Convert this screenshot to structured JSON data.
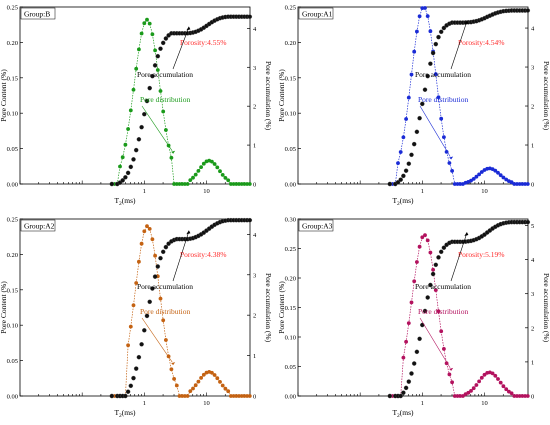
{
  "figure": {
    "x_axis_title": "T",
    "x_axis_subscript": "2",
    "x_axis_unit": "(ms)",
    "left_axis_title": "Pore Content (%)",
    "right_axis_title": "Pore accumulation (%)",
    "x_tick_labels": [
      "1",
      "10"
    ]
  },
  "chart_data": [
    {
      "type": "line",
      "group_label": "Group:B",
      "porosity_label": "Porosity:4.55%",
      "accumulation_label": "Pore accumulation",
      "distribution_label": "Pore distribution",
      "color": "#1a9a1a",
      "accumulation_color": "#111111",
      "porosity_color": "#ff2a2a",
      "xlabel": "T2(ms)",
      "ylabel": "Pore Content (%)",
      "y2label": "Pore accumulation (%)",
      "x_scale": "log",
      "xlim": [
        0.01,
        50
      ],
      "ylim": [
        0,
        0.25
      ],
      "y2lim": [
        0,
        4.55
      ],
      "y_ticks": [
        "0.00",
        "0.05",
        "0.10",
        "0.15",
        "0.20",
        "0.25"
      ],
      "y2_ticks": [
        "0",
        "1",
        "2",
        "3",
        "4"
      ],
      "distribution_peaks": [
        {
          "center_ms": 1.1,
          "height": 0.232,
          "log_width": 0.205,
          "range_ms": [
            0.38,
            3.0
          ]
        },
        {
          "center_ms": 11.0,
          "height": 0.033,
          "log_width": 0.16,
          "range_ms": [
            5.0,
            24.0
          ]
        }
      ],
      "accumulation_total": 4.3
    },
    {
      "type": "line",
      "group_label": "Group:A1",
      "porosity_label": "Porosity:4.54%",
      "accumulation_label": "Pore accumulation",
      "distribution_label": "Pore distribution",
      "color": "#1a2bd6",
      "accumulation_color": "#111111",
      "porosity_color": "#ff2a2a",
      "xlabel": "T2(ms)",
      "ylabel": "Pore Content (%)",
      "y2label": "Pore accumulation (%)",
      "x_scale": "log",
      "xlim": [
        0.01,
        50
      ],
      "ylim": [
        0,
        0.25
      ],
      "y2lim": [
        0,
        4.54
      ],
      "y_ticks": [
        "0.00",
        "0.05",
        "0.10",
        "0.15",
        "0.20",
        "0.25"
      ],
      "y2_ticks": [
        "0",
        "1",
        "2",
        "3",
        "4"
      ],
      "distribution_peaks": [
        {
          "center_ms": 1.05,
          "height": 0.25,
          "log_width": 0.2,
          "range_ms": [
            0.4,
            3.3
          ]
        },
        {
          "center_ms": 12.0,
          "height": 0.022,
          "log_width": 0.17,
          "range_ms": [
            4.5,
            30.0
          ]
        }
      ],
      "accumulation_total": 4.45
    },
    {
      "type": "line",
      "group_label": "Group:A2",
      "porosity_label": "Porosity:4.38%",
      "accumulation_label": "Pore accumulation",
      "distribution_label": "Pore distribution",
      "color": "#c46212",
      "accumulation_color": "#111111",
      "porosity_color": "#ff2a2a",
      "xlabel": "T2(ms)",
      "ylabel": "Pore Content (%)",
      "y2label": "Pore accumulation (%)",
      "x_scale": "log",
      "xlim": [
        0.01,
        50
      ],
      "ylim": [
        0,
        0.25
      ],
      "y2lim": [
        0,
        4.38
      ],
      "y_ticks": [
        "0.00",
        "0.05",
        "0.10",
        "0.15",
        "0.20",
        "0.25"
      ],
      "y2_ticks": [
        "0",
        "1",
        "2",
        "3",
        "4"
      ],
      "distribution_peaks": [
        {
          "center_ms": 1.12,
          "height": 0.24,
          "log_width": 0.2,
          "range_ms": [
            0.5,
            3.5
          ]
        },
        {
          "center_ms": 11.0,
          "height": 0.034,
          "log_width": 0.17,
          "range_ms": [
            5.0,
            24.0
          ]
        }
      ],
      "accumulation_total": 4.35
    },
    {
      "type": "line",
      "group_label": "Group:A3",
      "porosity_label": "Porosity:5.19%",
      "accumulation_label": "Pore accumulation",
      "distribution_label": "Pore distribution",
      "color": "#b3125e",
      "accumulation_color": "#111111",
      "porosity_color": "#ff2a2a",
      "xlabel": "T2(ms)",
      "ylabel": "Pore Content (%)",
      "y2label": "Pore accumulation (%)",
      "x_scale": "log",
      "xlim": [
        0.01,
        50
      ],
      "ylim": [
        0,
        0.3
      ],
      "y2lim": [
        0,
        5.19
      ],
      "y_ticks": [
        "0.00",
        "0.05",
        "0.10",
        "0.15",
        "0.20",
        "0.25",
        "0.30"
      ],
      "y2_ticks": [
        "0",
        "1",
        "2",
        "3",
        "4",
        "5"
      ],
      "distribution_peaks": [
        {
          "center_ms": 1.08,
          "height": 0.273,
          "log_width": 0.2,
          "range_ms": [
            0.45,
            3.2
          ]
        },
        {
          "center_ms": 12.0,
          "height": 0.04,
          "log_width": 0.17,
          "range_ms": [
            4.5,
            30.0
          ]
        }
      ],
      "accumulation_total": 5.1
    }
  ]
}
